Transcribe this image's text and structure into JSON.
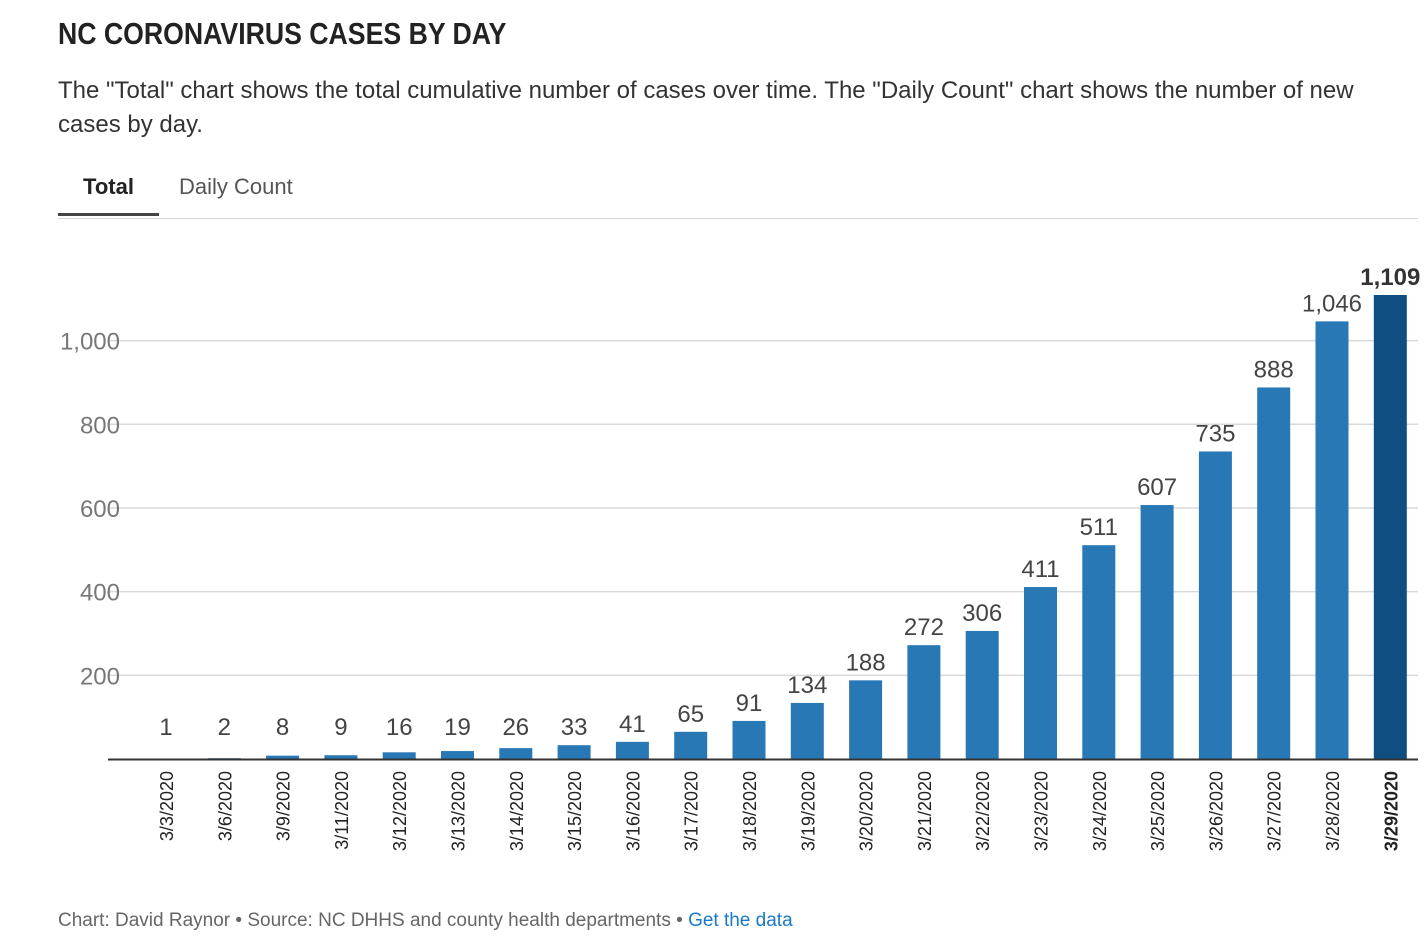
{
  "title": "NC CORONAVIRUS CASES BY DAY",
  "subtitle": "The \"Total\" chart shows the total cumulative number of cases over time. The \"Daily Count\" chart shows the number of new cases by day.",
  "tabs": {
    "total_label": "Total",
    "daily_label": "Daily Count",
    "active": "Total"
  },
  "colors": {
    "bar": "#2878b5",
    "bar_highlight": "#0e4e80",
    "gridline": "#d9d9d9",
    "axis": "#333333",
    "tick_label": "#777777",
    "value_label": "#444444",
    "link": "#1a7ac7"
  },
  "chart_data": {
    "type": "bar",
    "categories": [
      "3/3/2020",
      "3/6/2020",
      "3/9/2020",
      "3/11/2020",
      "3/12/2020",
      "3/13/2020",
      "3/14/2020",
      "3/15/2020",
      "3/16/2020",
      "3/17/2020",
      "3/18/2020",
      "3/19/2020",
      "3/20/2020",
      "3/21/2020",
      "3/22/2020",
      "3/23/2020",
      "3/24/2020",
      "3/25/2020",
      "3/26/2020",
      "3/27/2020",
      "3/28/2020",
      "3/29/2020"
    ],
    "values": [
      1,
      2,
      8,
      9,
      16,
      19,
      26,
      33,
      41,
      65,
      91,
      134,
      188,
      272,
      306,
      411,
      511,
      607,
      735,
      888,
      1046,
      1109
    ],
    "value_labels": [
      "1",
      "2",
      "8",
      "9",
      "16",
      "19",
      "26",
      "33",
      "41",
      "65",
      "91",
      "134",
      "188",
      "272",
      "306",
      "411",
      "511",
      "607",
      "735",
      "888",
      "1,046",
      "1,109"
    ],
    "yticks": [
      200,
      400,
      600,
      800,
      1000
    ],
    "ytick_labels": [
      "200",
      "400",
      "600",
      "800",
      "1,000"
    ],
    "ylim": [
      0,
      1109
    ],
    "highlight_last": true,
    "grid": true
  },
  "footer": {
    "chart_credit": "Chart: David Raynor",
    "separator": "•",
    "source": "Source: NC DHHS and county health departments",
    "link_text": "Get the data"
  }
}
